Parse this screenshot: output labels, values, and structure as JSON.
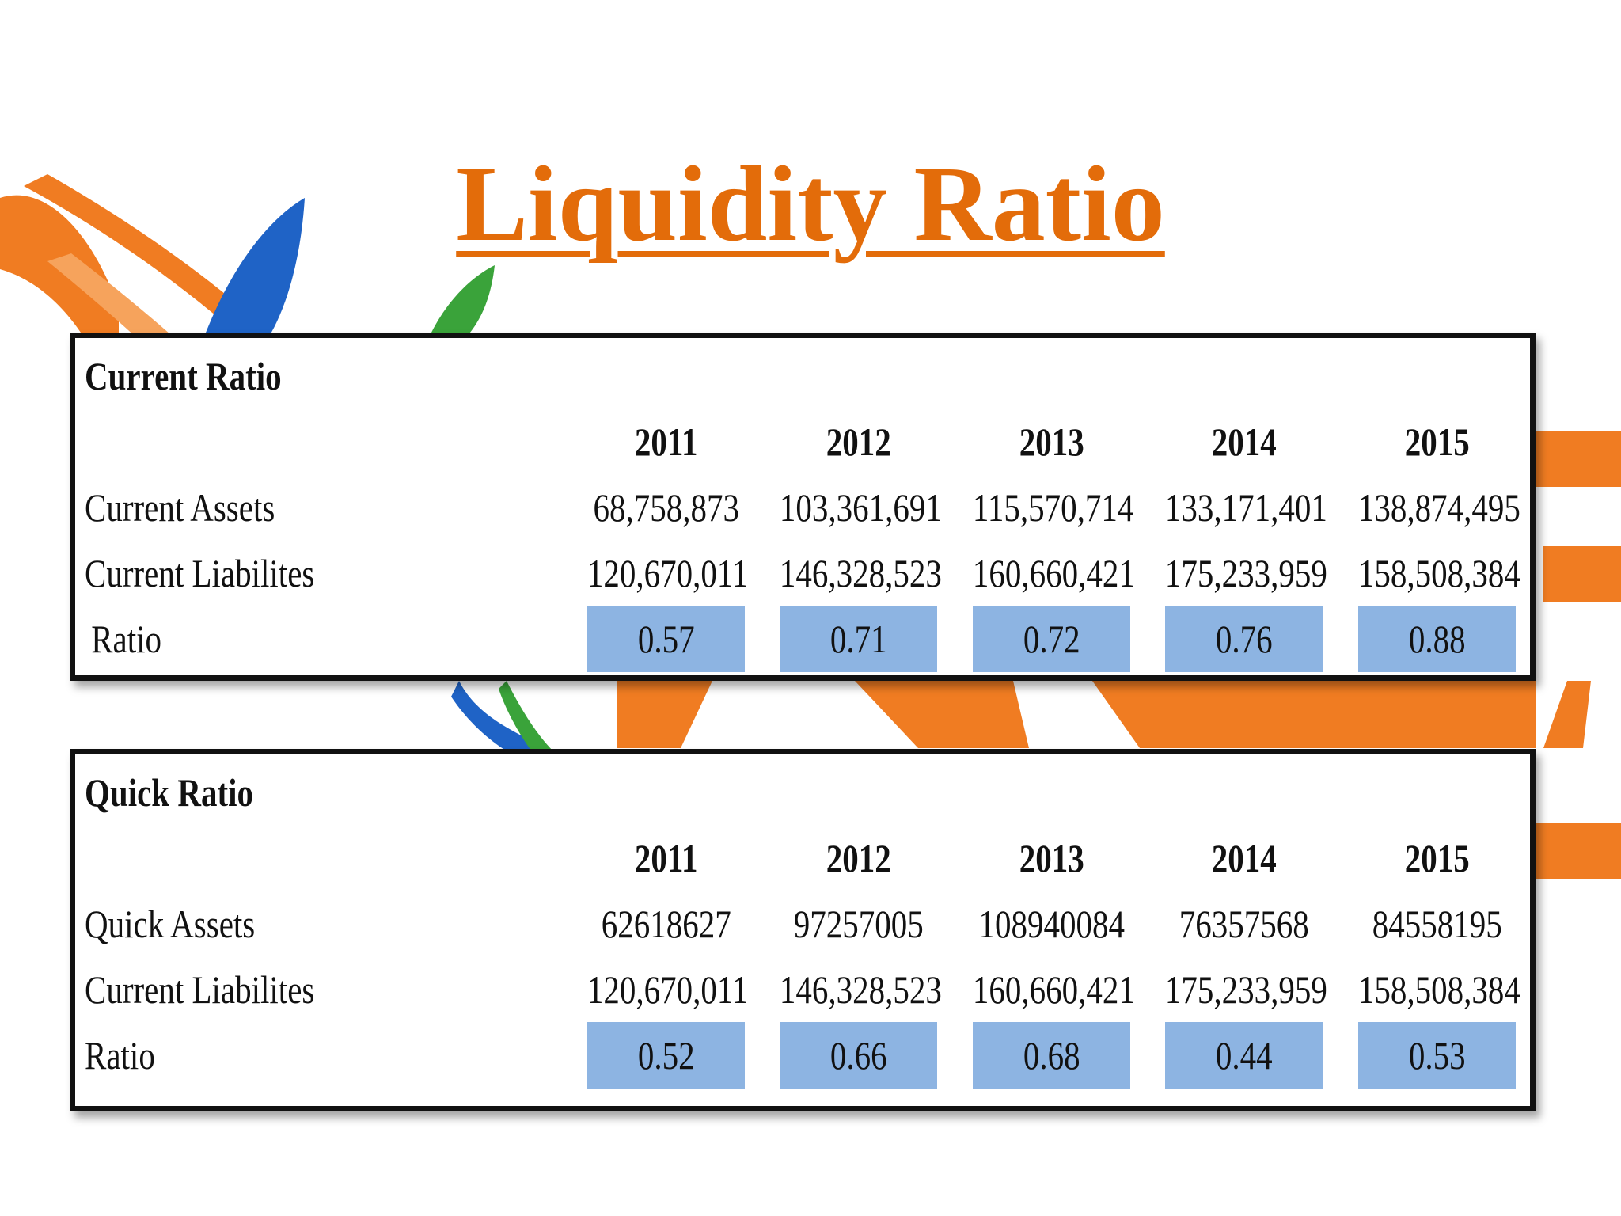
{
  "slide": {
    "title": "Liquidity Ratio",
    "title_color": "#e36c0a"
  },
  "current_ratio": {
    "heading": "Current Ratio",
    "years": [
      "2011",
      "2012",
      "2013",
      "2014",
      "2015"
    ],
    "rows": [
      {
        "label": "Current Assets",
        "values": [
          "68,758,873",
          "103,361,691",
          "115,570,714",
          "133,171,401",
          "138,874,495"
        ]
      },
      {
        "label": "Current Liabilites",
        "values": [
          "120,670,011",
          "146,328,523",
          "160,660,421",
          "175,233,959",
          "158,508,384"
        ]
      }
    ],
    "ratio": {
      "label": "Ratio",
      "values": [
        "0.57",
        "0.71",
        "0.72",
        "0.76",
        "0.88"
      ]
    },
    "highlight_color": "#8db4e2"
  },
  "quick_ratio": {
    "heading": "Quick Ratio",
    "years": [
      "2011",
      "2012",
      "2013",
      "2014",
      "2015"
    ],
    "rows": [
      {
        "label": "Quick Assets",
        "values": [
          "62618627",
          "97257005",
          "108940084",
          "76357568",
          "84558195"
        ]
      },
      {
        "label": "Current Liabilites",
        "values": [
          "120,670,011",
          "146,328,523",
          "160,660,421",
          "175,233,959",
          "158,508,384"
        ]
      }
    ],
    "ratio": {
      "label": "Ratio",
      "values": [
        "0.52",
        "0.66",
        "0.68",
        "0.44",
        "0.53"
      ]
    },
    "highlight_color": "#8db4e2"
  }
}
